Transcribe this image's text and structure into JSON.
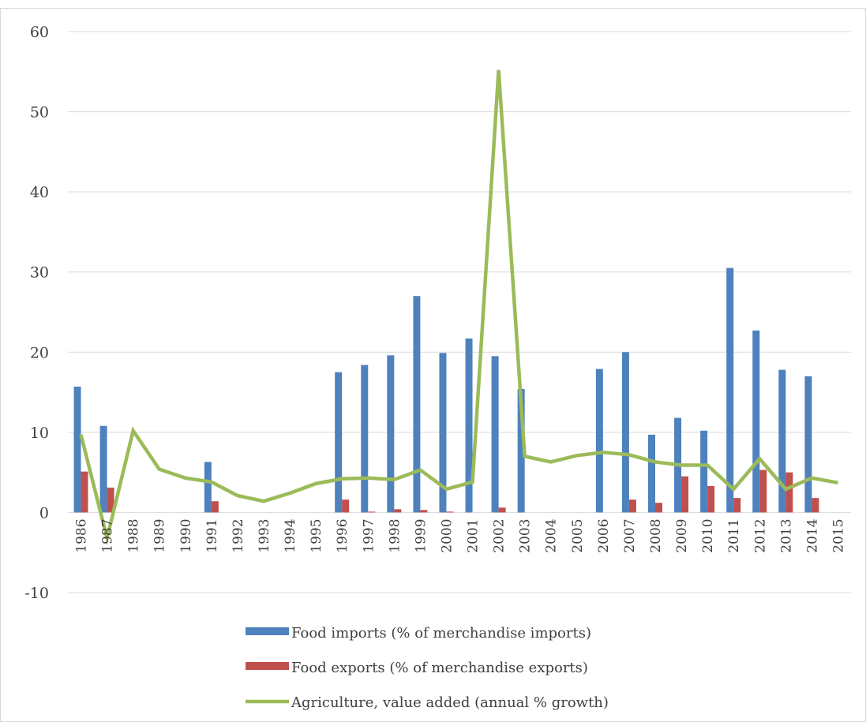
{
  "chart_data": {
    "type": "bar",
    "categories": [
      "1986",
      "1987",
      "1988",
      "1989",
      "1990",
      "1991",
      "1992",
      "1993",
      "1994",
      "1995",
      "1996",
      "1997",
      "1998",
      "1999",
      "2000",
      "2001",
      "2002",
      "2003",
      "2004",
      "2005",
      "2006",
      "2007",
      "2008",
      "2009",
      "2010",
      "2011",
      "2012",
      "2013",
      "2014",
      "2015"
    ],
    "y_ticks": [
      "60",
      "50",
      "40",
      "30",
      "20",
      "10",
      "0",
      "-10"
    ],
    "ylim": [
      -10,
      60
    ],
    "grid": true,
    "legend_position": "bottom",
    "series": [
      {
        "name": "Food imports (% of merchandise imports)",
        "type": "bar",
        "color": "#4f81bd",
        "values": [
          15.7,
          10.8,
          null,
          null,
          null,
          6.3,
          null,
          null,
          null,
          null,
          17.5,
          18.4,
          19.6,
          27.0,
          19.9,
          21.7,
          19.5,
          15.4,
          null,
          null,
          17.9,
          20.0,
          9.7,
          11.8,
          10.2,
          30.5,
          22.7,
          17.8,
          17.0,
          null
        ]
      },
      {
        "name": "Food exports (% of merchandise exports)",
        "type": "bar",
        "color": "#c0504d",
        "values": [
          5.1,
          3.1,
          null,
          null,
          null,
          1.4,
          null,
          null,
          null,
          null,
          1.6,
          0.1,
          0.4,
          0.3,
          0.1,
          null,
          0.6,
          null,
          null,
          null,
          null,
          1.6,
          1.2,
          4.5,
          3.3,
          1.8,
          5.3,
          5.0,
          1.8,
          null
        ]
      },
      {
        "name": "Agriculture, value added (annual % growth)",
        "type": "line",
        "color": "#9bbb59",
        "values": [
          9.7,
          -3.2,
          10.2,
          5.4,
          4.3,
          3.8,
          2.1,
          1.4,
          2.4,
          3.6,
          4.2,
          4.3,
          4.1,
          5.3,
          2.9,
          3.8,
          55.2,
          7.0,
          6.3,
          7.1,
          7.5,
          7.2,
          6.3,
          5.9,
          5.9,
          2.9,
          6.7,
          2.9,
          4.3,
          3.7
        ]
      }
    ]
  }
}
